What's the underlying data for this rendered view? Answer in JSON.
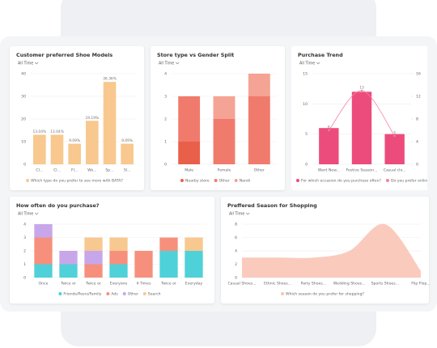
{
  "chart_data": [
    {
      "type": "bar",
      "title": "Customer preferred Shoe Models",
      "filter": "All Time",
      "categories": [
        "Cl...",
        "Cl...",
        "Fl...",
        "Wo...",
        "Sp...",
        "Sl..."
      ],
      "series": [
        {
          "name": "Which type do you prefer to see more with BATA?",
          "color": "#f8c88e",
          "values": [
            13.04,
            13.04,
            9.09,
            19.19,
            36.36,
            9.09
          ],
          "value_labels": [
            "13.04%",
            "13.04%",
            "9.09%",
            "19.19%",
            "36.36%",
            "9.09%"
          ]
        }
      ],
      "ylim": [
        0,
        40
      ],
      "yticks": [
        0,
        10,
        20,
        30,
        40
      ],
      "grid": true
    },
    {
      "type": "stacked_bar",
      "title": "Store type vs Gender Split",
      "filter": "All Time",
      "categories": [
        "Male",
        "Female",
        "Other"
      ],
      "series": [
        {
          "name": "Nearby store",
          "color": "#e9604a",
          "values": [
            1,
            0,
            0
          ]
        },
        {
          "name": "Other",
          "color": "#f07b6c",
          "values": [
            2,
            2,
            3
          ]
        },
        {
          "name": "Nandi",
          "color": "#f5a394",
          "values": [
            0,
            1,
            1
          ]
        }
      ],
      "ylim": [
        0,
        4
      ],
      "yticks": [
        0,
        1,
        2,
        3,
        4
      ],
      "grid": true
    },
    {
      "type": "combo",
      "title": "Purchase Trend",
      "filter": "All Time",
      "categories": [
        "Want New...",
        "Festive Season...",
        "Casual clo..."
      ],
      "series": [
        {
          "name": "For which occasion do you purchase often?",
          "color": "#ec4c7c",
          "values": [
            6,
            12,
            5
          ]
        },
        {
          "name": "Do you prefer online or in-store",
          "color": "#f5829f",
          "values": [
            6,
            13,
            5
          ],
          "axis": "y2"
        }
      ],
      "ylim": [
        0,
        15
      ],
      "yticks": [
        0,
        5,
        10,
        15
      ],
      "y2lim": [
        0,
        16
      ],
      "y2ticks": [
        0,
        4,
        8,
        12,
        16
      ],
      "grid": true
    },
    {
      "type": "stacked_bar",
      "title": "How often do you purchase?",
      "filter": "All Time",
      "categories": [
        "Once",
        "Twice or",
        "Twice or",
        "Everyone",
        "4 Times",
        "Twice or",
        "Everyday"
      ],
      "series": [
        {
          "name": "Friends/Peers/Family",
          "color": "#4fd1d9",
          "values": [
            1,
            1,
            0,
            1,
            0,
            2,
            2
          ]
        },
        {
          "name": "Ads",
          "color": "#f6907c",
          "values": [
            2,
            0,
            1,
            1,
            2,
            1,
            0
          ]
        },
        {
          "name": "Other",
          "color": "#c8a6ea",
          "values": [
            1,
            1,
            1,
            0,
            0,
            0,
            0
          ]
        },
        {
          "name": "Search",
          "color": "#f7c890",
          "values": [
            0,
            0,
            1,
            1,
            0,
            0,
            1
          ]
        }
      ],
      "ylim": [
        0,
        4
      ],
      "yticks": [
        0,
        1,
        2,
        3,
        4
      ],
      "grid": true
    },
    {
      "type": "area",
      "title": "Preffered Season for Shopping",
      "filter": "All Time",
      "categories": [
        "Casual Shoes...",
        "Ethnic Shoes...",
        "Party Shoes...",
        "Wedding Shoes...",
        "Sports Shoes...",
        "Flip Flop..."
      ],
      "series": [
        {
          "name": "Which season do you prefer for shopping?",
          "color": "#f9c2b2",
          "values": [
            3,
            3,
            3,
            4,
            8,
            1
          ]
        }
      ],
      "ylim": [
        0,
        8
      ],
      "yticks": [
        0,
        2,
        4,
        6,
        8
      ],
      "grid": true
    }
  ]
}
